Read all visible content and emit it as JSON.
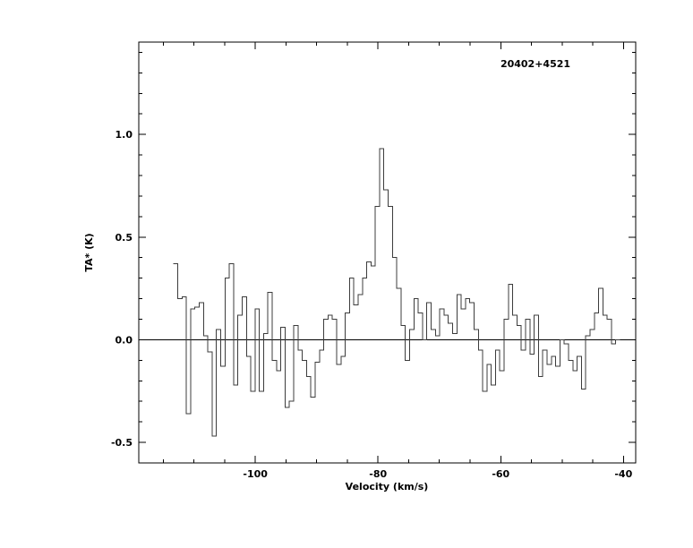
{
  "page": {
    "background": "#ffffff"
  },
  "chart_data": {
    "type": "line",
    "subtype": "histogram-step-spectrum",
    "title": "20402+4521",
    "xlabel": "Velocity (km/s)",
    "ylabel": "TA* (K)",
    "xlim": [
      -119,
      -38
    ],
    "ylim": [
      -0.6,
      1.45
    ],
    "x_ticks": {
      "values": [
        -100,
        -80,
        -60,
        -40
      ],
      "labels": [
        "-100",
        "-80",
        "-60",
        "-40"
      ]
    },
    "y_ticks": {
      "values": [
        -0.5,
        0.0,
        0.5,
        1.0
      ],
      "labels": [
        "-0.5",
        "0.0",
        "0.5",
        "1.0"
      ]
    },
    "x_minor_step": 5,
    "y_minor_step": 0.1,
    "grid": false,
    "legend": false,
    "zero_line": true,
    "axis_color": "#000000",
    "line_color": "#3c3c3c",
    "velocity_start": -113.0,
    "channel_width": 0.7,
    "values": [
      0.37,
      0.2,
      0.21,
      -0.36,
      0.15,
      0.16,
      0.18,
      0.02,
      -0.06,
      -0.47,
      0.05,
      -0.13,
      0.3,
      0.37,
      -0.22,
      0.12,
      0.21,
      -0.08,
      -0.25,
      0.15,
      -0.25,
      0.03,
      0.23,
      -0.1,
      -0.15,
      0.06,
      -0.33,
      -0.3,
      0.07,
      -0.05,
      -0.1,
      -0.18,
      -0.28,
      -0.11,
      -0.05,
      0.1,
      0.12,
      0.1,
      -0.12,
      -0.08,
      0.13,
      0.3,
      0.17,
      0.22,
      0.3,
      0.38,
      0.36,
      0.65,
      0.93,
      0.73,
      0.65,
      0.4,
      0.25,
      0.07,
      -0.1,
      0.05,
      0.2,
      0.13,
      0.0,
      0.18,
      0.05,
      0.02,
      0.15,
      0.12,
      0.08,
      0.03,
      0.22,
      0.15,
      0.2,
      0.18,
      0.05,
      -0.05,
      -0.25,
      -0.12,
      -0.22,
      -0.05,
      -0.15,
      0.1,
      0.27,
      0.12,
      0.07,
      -0.05,
      0.1,
      -0.07,
      0.12,
      -0.18,
      -0.05,
      -0.12,
      -0.08,
      -0.13,
      0.0,
      -0.02,
      -0.1,
      -0.15,
      -0.08,
      -0.24,
      0.02,
      0.05,
      0.13,
      0.25,
      0.12,
      0.1,
      -0.02,
      0.0
    ]
  }
}
